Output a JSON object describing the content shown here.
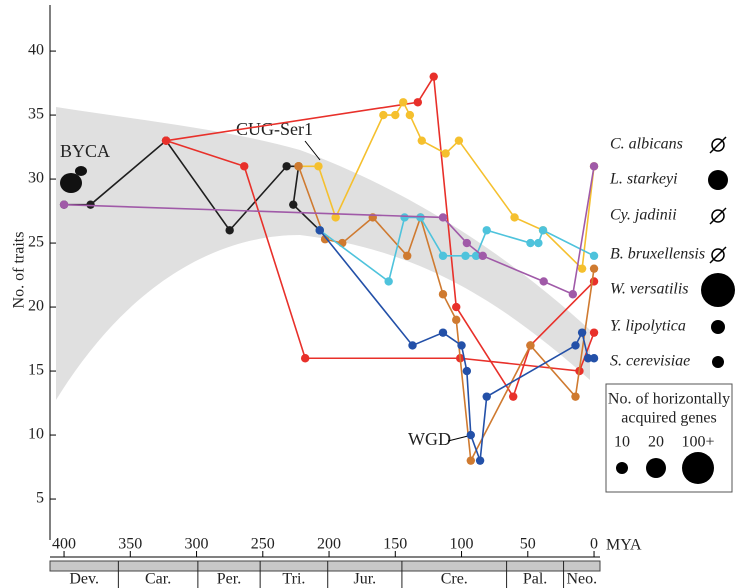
{
  "chart_data": {
    "type": "line",
    "y_label": "No. of traits",
    "x_label": "MYA",
    "xlim": [
      410.6,
      -4.5
    ],
    "ylim": [
      1.8,
      43.6
    ],
    "xticks": [
      400,
      350,
      300,
      250,
      200,
      150,
      100,
      50,
      0
    ],
    "yticks": [
      5,
      10,
      15,
      20,
      25,
      30,
      35,
      40
    ],
    "periods": {
      "labels": [
        "Dev.",
        "Car.",
        "Per.",
        "Tri.",
        "Jur.",
        "Cre.",
        "Pal.",
        "Neo."
      ],
      "boundaries": [
        359,
        299,
        252,
        201,
        145,
        66,
        23
      ]
    },
    "annotations": [
      "BYCA",
      "CUG-Ser1",
      "WGD"
    ],
    "series": [
      {
        "color": "#1e1e1e",
        "x": [
          400,
          380,
          323,
          275,
          232,
          223,
          227,
          207
        ],
        "values": [
          28,
          28,
          33,
          26,
          31,
          31,
          28,
          26
        ]
      },
      {
        "color": "#e8302a",
        "x": [
          323,
          264,
          218,
          101,
          11,
          0
        ],
        "values": [
          33,
          31,
          16,
          16,
          15,
          18
        ]
      },
      {
        "color": "#e8302a",
        "x": [
          323,
          133,
          121,
          104,
          61,
          48,
          0
        ],
        "values": [
          33,
          36,
          38,
          20,
          13,
          17,
          22
        ]
      },
      {
        "color": "#f5c02e",
        "x": [
          223,
          208,
          195,
          159,
          150,
          144,
          139,
          130,
          112,
          102,
          60,
          38.5,
          9,
          0
        ],
        "values": [
          31,
          31,
          27,
          35,
          35,
          36,
          35,
          33,
          32,
          33,
          27,
          26,
          23,
          31
        ]
      },
      {
        "color": "#cf7a30",
        "x": [
          223,
          203,
          190,
          167,
          141,
          131,
          114,
          104,
          93,
          48,
          14,
          0
        ],
        "values": [
          31,
          25.3,
          25,
          27,
          24,
          27,
          21,
          19,
          8,
          17,
          13,
          23
        ]
      },
      {
        "color": "#4ec3dc",
        "x": [
          207,
          155,
          143,
          131,
          114,
          97,
          89,
          81,
          48,
          42,
          38.5,
          0
        ],
        "values": [
          26,
          22,
          27,
          27,
          24,
          24,
          24,
          26,
          25,
          25,
          26,
          24
        ]
      },
      {
        "color": "#a05aa8",
        "x": [
          400,
          114,
          96,
          84,
          38,
          16,
          0
        ],
        "values": [
          28,
          27,
          25,
          24,
          22,
          21,
          31
        ]
      },
      {
        "color": "#2350a8",
        "x": [
          207,
          137,
          114,
          100,
          96,
          93,
          86,
          81,
          14,
          9,
          4.5,
          0
        ],
        "values": [
          26,
          17,
          18,
          17,
          15,
          10,
          8,
          13,
          17,
          18,
          16,
          16
        ]
      }
    ],
    "legend": {
      "species": [
        "C. albicans",
        "L. starkeyi",
        "Cy. jadinii",
        "B. bruxellensis",
        "W. versatilis",
        "Y. lipolytica",
        "S. cerevisiae"
      ],
      "title_lines": [
        "No. of horizontally",
        "acquired genes"
      ],
      "sizes": [
        "10",
        "20",
        "100+"
      ]
    }
  }
}
